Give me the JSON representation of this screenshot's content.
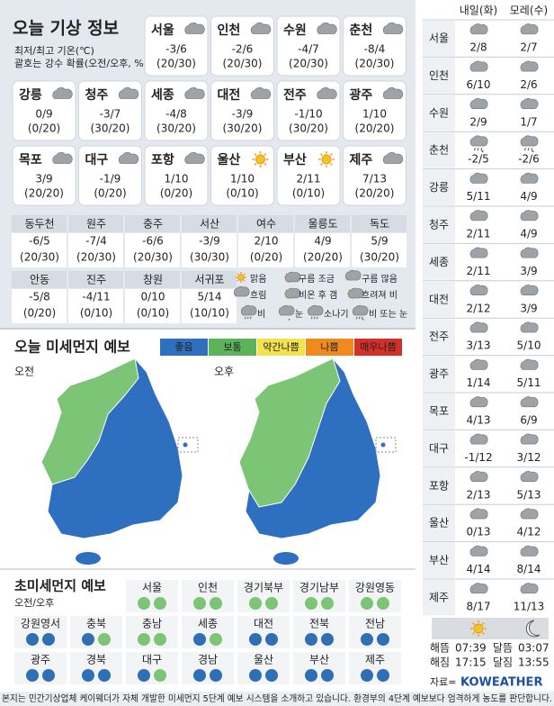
{
  "header": {
    "title": "오늘 기상 정보",
    "unit": "최저/최고 기온(℃)",
    "note": "괄호는 강수 확률(오전/오후, %)"
  },
  "cards": [
    [
      {
        "city": "서울",
        "temp": "-3/6",
        "rain": "(20/30)",
        "icon": "cloud"
      },
      {
        "city": "인천",
        "temp": "-2/6",
        "rain": "(20/30)",
        "icon": "cloud"
      },
      {
        "city": "수원",
        "temp": "-4/7",
        "rain": "(20/30)",
        "icon": "cloud"
      },
      {
        "city": "춘천",
        "temp": "-8/4",
        "rain": "(20/30)",
        "icon": "cloud"
      }
    ],
    [
      {
        "city": "강릉",
        "temp": "0/9",
        "rain": "(0/20)",
        "icon": "cloud"
      },
      {
        "city": "청주",
        "temp": "-3/7",
        "rain": "(30/20)",
        "icon": "cloud"
      },
      {
        "city": "세종",
        "temp": "-4/8",
        "rain": "(30/20)",
        "icon": "cloud"
      },
      {
        "city": "대전",
        "temp": "-3/9",
        "rain": "(30/20)",
        "icon": "cloud"
      },
      {
        "city": "전주",
        "temp": "-1/10",
        "rain": "(30/20)",
        "icon": "cloud"
      },
      {
        "city": "광주",
        "temp": "1/10",
        "rain": "(20/20)",
        "icon": "cloud"
      }
    ],
    [
      {
        "city": "목포",
        "temp": "3/9",
        "rain": "(20/20)",
        "icon": "cloud"
      },
      {
        "city": "대구",
        "temp": "-1/9",
        "rain": "(0/20)",
        "icon": "cloud"
      },
      {
        "city": "포항",
        "temp": "1/10",
        "rain": "(0/20)",
        "icon": "cloud"
      },
      {
        "city": "울산",
        "temp": "1/10",
        "rain": "(0/10)",
        "icon": "sun"
      },
      {
        "city": "부산",
        "temp": "2/11",
        "rain": "(0/10)",
        "icon": "sun"
      },
      {
        "city": "제주",
        "temp": "7/13",
        "rain": "(20/20)",
        "icon": "cloud"
      }
    ]
  ],
  "table": [
    [
      {
        "city": "동두천",
        "temp": "-6/5",
        "rain": "(20/30)"
      },
      {
        "city": "원주",
        "temp": "-7/4",
        "rain": "(20/30)"
      },
      {
        "city": "충주",
        "temp": "-6/6",
        "rain": "(20/30)"
      },
      {
        "city": "서산",
        "temp": "-3/9",
        "rain": "(30/30)"
      },
      {
        "city": "여수",
        "temp": "2/10",
        "rain": "(0/20)"
      },
      {
        "city": "울릉도",
        "temp": "4/9",
        "rain": "(20/20)"
      },
      {
        "city": "독도",
        "temp": "5/9",
        "rain": "(30/20)"
      }
    ],
    [
      {
        "city": "안동",
        "temp": "-5/8",
        "rain": "(0/20)"
      },
      {
        "city": "진주",
        "temp": "-4/11",
        "rain": "(0/10)"
      },
      {
        "city": "창원",
        "temp": "0/10",
        "rain": "(0/10)"
      },
      {
        "city": "서귀포",
        "temp": "5/14",
        "rain": "(10/10)"
      }
    ]
  ],
  "weather_legend": [
    "맑음",
    "구름 조금",
    "구름 많음",
    "흐림",
    "비온 후 갬",
    "흐려져 비",
    "비",
    "눈",
    "소나기",
    "비 또는 눈"
  ],
  "dust": {
    "title": "오늘 미세먼지 예보",
    "am": "오전",
    "pm": "오후",
    "levels": [
      {
        "label": "좋음",
        "color": "#2f6fc0"
      },
      {
        "label": "보통",
        "color": "#5cb35a"
      },
      {
        "label": "약간나쁨",
        "color": "#f1e24e"
      },
      {
        "label": "나쁨",
        "color": "#ef8a1f"
      },
      {
        "label": "매우나쁨",
        "color": "#d4302a"
      }
    ]
  },
  "pm25": {
    "title": "초미세먼지 예보",
    "sub": "오전/오후",
    "rows": [
      [
        {
          "name": "서울",
          "colors": [
            "#7cc576",
            "#7cc576"
          ]
        },
        {
          "name": "인천",
          "colors": [
            "#7cc576",
            "#7cc576"
          ]
        },
        {
          "name": "경기북부",
          "colors": [
            "#7cc576",
            "#7cc576"
          ]
        },
        {
          "name": "경기남부",
          "colors": [
            "#7cc576",
            "#7cc576"
          ]
        },
        {
          "name": "강원영동",
          "colors": [
            "#7cc576",
            "#7cc576"
          ]
        }
      ],
      [
        {
          "name": "강원영서",
          "colors": [
            "#2f6fb5",
            "#2f6fb5"
          ]
        },
        {
          "name": "충북",
          "colors": [
            "#2f6fb5",
            "#7cc576"
          ]
        },
        {
          "name": "충남",
          "colors": [
            "#7cc576",
            "#7cc576"
          ]
        },
        {
          "name": "세종",
          "colors": [
            "#2f6fb5",
            "#7cc576"
          ]
        },
        {
          "name": "대전",
          "colors": [
            "#2f6fb5",
            "#2f6fb5"
          ]
        },
        {
          "name": "전북",
          "colors": [
            "#2f6fb5",
            "#2f6fb5"
          ]
        },
        {
          "name": "전남",
          "colors": [
            "#2f6fb5",
            "#2f6fb5"
          ]
        }
      ],
      [
        {
          "name": "광주",
          "colors": [
            "#2f6fb5",
            "#2f6fb5"
          ]
        },
        {
          "name": "경북",
          "colors": [
            "#2f6fb5",
            "#2f6fb5"
          ]
        },
        {
          "name": "대구",
          "colors": [
            "#2f6fb5",
            "#7cc576"
          ]
        },
        {
          "name": "경남",
          "colors": [
            "#2f6fb5",
            "#2f6fb5"
          ]
        },
        {
          "name": "울산",
          "colors": [
            "#2f6fb5",
            "#2f6fb5"
          ]
        },
        {
          "name": "부산",
          "colors": [
            "#2f6fb5",
            "#2f6fb5"
          ]
        },
        {
          "name": "제주",
          "colors": [
            "#2f6fb5",
            "#2f6fb5"
          ]
        }
      ]
    ]
  },
  "forecast": {
    "headers": [
      "내일(화)",
      "모레(수)"
    ],
    "rows": [
      {
        "city": "서울",
        "temps": [
          "2/8",
          "2/7"
        ]
      },
      {
        "city": "인천",
        "temps": [
          "6/10",
          "2/6"
        ]
      },
      {
        "city": "수원",
        "temps": [
          "2/9",
          "1/7"
        ]
      },
      {
        "city": "춘천",
        "temps": [
          "-2/5",
          "-2/6"
        ],
        "icon": "rainsnow"
      },
      {
        "city": "강릉",
        "temps": [
          "5/11",
          "4/9"
        ]
      },
      {
        "city": "청주",
        "temps": [
          "2/11",
          "4/9"
        ]
      },
      {
        "city": "세종",
        "temps": [
          "2/11",
          "3/9"
        ]
      },
      {
        "city": "대전",
        "temps": [
          "2/12",
          "3/9"
        ]
      },
      {
        "city": "전주",
        "temps": [
          "3/13",
          "5/10"
        ]
      },
      {
        "city": "광주",
        "temps": [
          "1/14",
          "5/11"
        ]
      },
      {
        "city": "목포",
        "temps": [
          "4/13",
          "6/9"
        ]
      },
      {
        "city": "대구",
        "temps": [
          "-1/12",
          "3/12"
        ]
      },
      {
        "city": "포항",
        "temps": [
          "2/13",
          "5/13"
        ]
      },
      {
        "city": "울산",
        "temps": [
          "0/13",
          "4/12"
        ]
      },
      {
        "city": "부산",
        "temps": [
          "4/14",
          "8/14"
        ]
      },
      {
        "city": "제주",
        "temps": [
          "8/17",
          "11/13"
        ]
      }
    ],
    "astro": [
      {
        "label": "해뜸",
        "time": "07:39"
      },
      {
        "label": "해짐",
        "time": "17:15"
      },
      {
        "label": "달뜸",
        "time": "03:07"
      },
      {
        "label": "달짐",
        "time": "13:55"
      }
    ],
    "source_label": "자료=",
    "brand": "KOWEATHER"
  },
  "footer": "본지는 민간기상업체 케이웨더가 자체 개발한 미세먼지 5단계 예보 시스템을 소개하고 있습니다. 환경부의 4단계 예보보다 엄격하게 농도를 판단합니다."
}
